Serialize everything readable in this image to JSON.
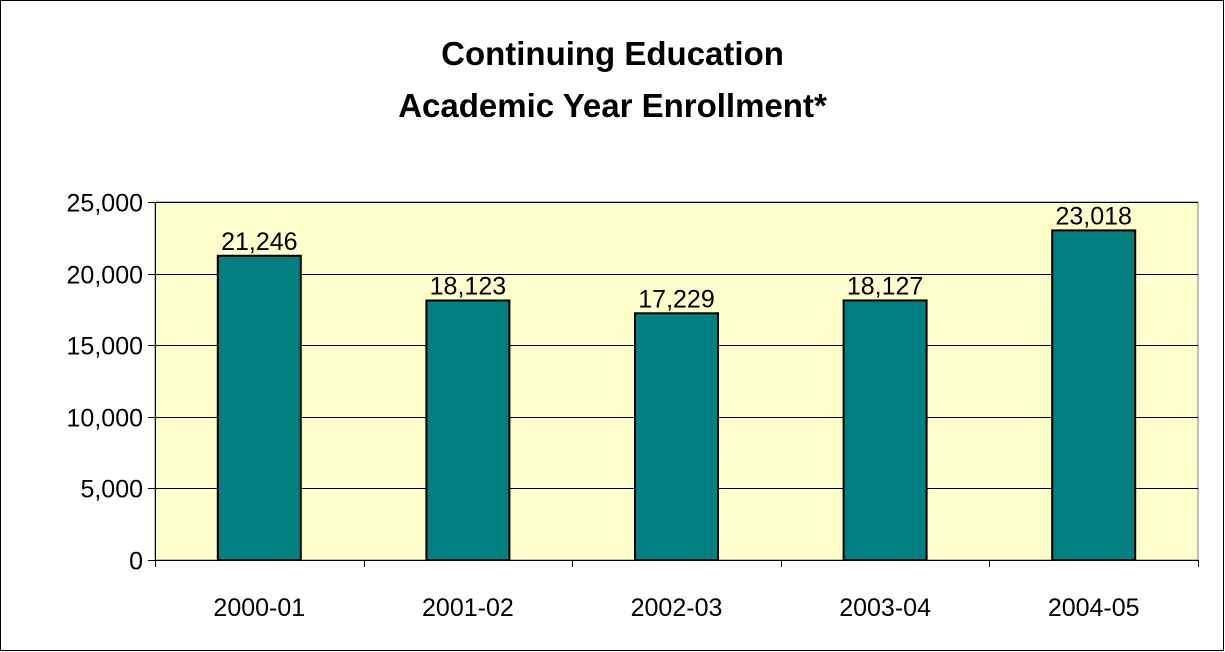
{
  "chart_data": {
    "type": "bar",
    "title": [
      "Continuing Education",
      "Academic Year Enrollment*"
    ],
    "categories": [
      "2000-01",
      "2001-02",
      "2002-03",
      "2003-04",
      "2004-05"
    ],
    "values": [
      21246,
      18123,
      17229,
      18127,
      23018
    ],
    "value_labels": [
      "21,246",
      "18,123",
      "17,229",
      "18,127",
      "23,018"
    ],
    "xlabel": "",
    "ylabel": "",
    "ylim": [
      0,
      25000
    ],
    "yticks": [
      0,
      5000,
      10000,
      15000,
      20000,
      25000
    ],
    "ytick_labels": [
      "0",
      "5,000",
      "10,000",
      "15,000",
      "20,000",
      "25,000"
    ],
    "grid": true,
    "legend": "none",
    "colors": {
      "bar": "#008080",
      "plot_background": "#FFFFCC",
      "gridline": "#000000"
    }
  }
}
